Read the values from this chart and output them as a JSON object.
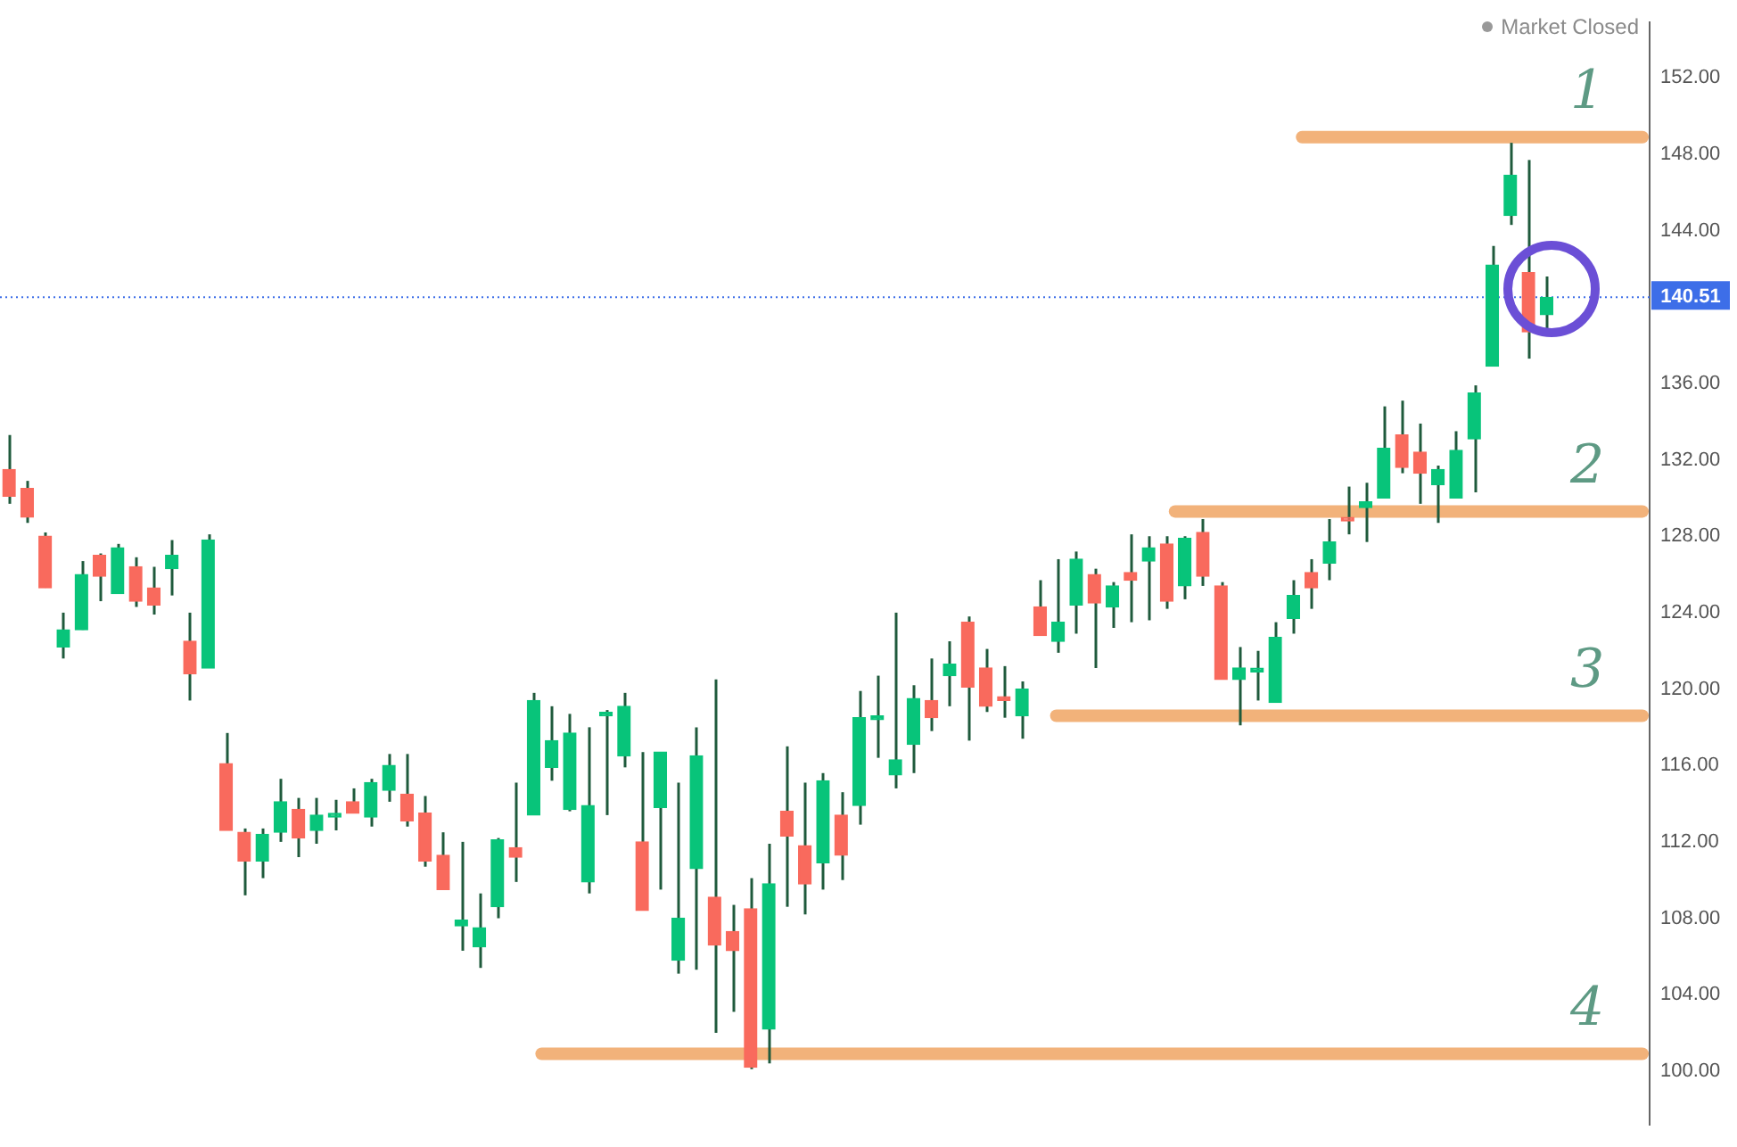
{
  "chart_data": {
    "type": "candlestick",
    "tick_labels": "y",
    "categories": [
      null,
      null,
      null,
      null,
      null,
      null,
      null,
      null,
      null,
      null,
      null,
      null,
      null,
      null,
      null,
      null,
      null,
      null,
      null,
      null,
      null,
      null,
      null,
      null,
      null,
      null,
      null,
      null,
      null,
      null,
      null,
      null,
      null,
      null,
      null,
      null,
      null,
      null,
      null,
      null,
      null,
      null,
      null,
      null,
      null,
      null,
      null,
      null,
      null,
      null,
      null,
      null,
      null,
      null,
      null,
      null,
      null,
      null,
      null,
      null,
      null,
      null,
      null,
      null,
      null,
      null,
      null,
      null,
      null,
      null,
      null,
      null,
      null,
      null,
      null,
      null,
      null,
      null,
      null,
      null,
      null,
      null,
      null,
      null,
      null,
      null
    ],
    "ohlc": [
      [
        131.5,
        133.3,
        129.7,
        130.1
      ],
      [
        130.5,
        130.9,
        128.7,
        129.0
      ],
      [
        128.0,
        128.2,
        125.3,
        125.3
      ],
      [
        122.2,
        124.0,
        121.6,
        123.1
      ],
      [
        123.1,
        126.7,
        123.1,
        126.0
      ],
      [
        127.0,
        127.1,
        124.6,
        125.9
      ],
      [
        125.0,
        127.6,
        125.0,
        127.4
      ],
      [
        126.4,
        126.9,
        124.3,
        124.6
      ],
      [
        125.3,
        126.4,
        123.9,
        124.4
      ],
      [
        126.3,
        127.8,
        124.9,
        127.0
      ],
      [
        122.5,
        124.0,
        119.4,
        120.8
      ],
      [
        121.1,
        128.1,
        121.1,
        127.8
      ],
      [
        116.1,
        117.7,
        112.6,
        112.6
      ],
      [
        112.5,
        112.7,
        109.2,
        111.0
      ],
      [
        111.0,
        112.7,
        110.1,
        112.4
      ],
      [
        112.5,
        115.3,
        112.0,
        114.1
      ],
      [
        113.7,
        114.3,
        111.2,
        112.2
      ],
      [
        112.6,
        114.3,
        111.9,
        113.4
      ],
      [
        113.3,
        114.2,
        112.6,
        113.4
      ],
      [
        114.1,
        114.8,
        113.5,
        113.5
      ],
      [
        113.3,
        115.3,
        112.8,
        115.1
      ],
      [
        114.7,
        116.6,
        114.1,
        116.0
      ],
      [
        114.5,
        116.6,
        112.8,
        113.1
      ],
      [
        113.5,
        114.4,
        110.7,
        111.0
      ],
      [
        111.3,
        112.5,
        109.5,
        109.5
      ],
      [
        107.6,
        112.0,
        106.3,
        107.9
      ],
      [
        106.5,
        109.3,
        105.4,
        107.5
      ],
      [
        108.6,
        112.2,
        108.0,
        112.1
      ],
      [
        111.7,
        115.1,
        109.9,
        111.2
      ],
      [
        113.4,
        119.8,
        113.4,
        119.4
      ],
      [
        115.9,
        119.1,
        115.2,
        117.3
      ],
      [
        113.7,
        118.7,
        113.6,
        117.7
      ],
      [
        109.9,
        118.0,
        109.3,
        113.9
      ],
      [
        118.6,
        118.9,
        113.4,
        118.7
      ],
      [
        116.5,
        119.8,
        115.9,
        119.1
      ],
      [
        112.0,
        116.7,
        108.4,
        108.4
      ],
      [
        113.8,
        116.7,
        109.5,
        116.7
      ],
      [
        105.8,
        115.1,
        105.1,
        108.0
      ],
      [
        110.6,
        118.0,
        105.3,
        116.5
      ],
      [
        109.1,
        120.5,
        102.0,
        106.6
      ],
      [
        107.3,
        108.7,
        103.1,
        106.3
      ],
      [
        108.5,
        110.1,
        100.1,
        100.2
      ],
      [
        102.2,
        111.9,
        100.4,
        109.8
      ],
      [
        113.6,
        117.0,
        108.6,
        112.3
      ],
      [
        111.8,
        115.1,
        108.2,
        109.8
      ],
      [
        110.9,
        115.6,
        109.5,
        115.2
      ],
      [
        113.4,
        114.6,
        110.0,
        111.3
      ],
      [
        113.9,
        119.9,
        112.9,
        118.5
      ],
      [
        118.4,
        120.7,
        116.4,
        118.6
      ],
      [
        115.5,
        124.0,
        114.8,
        116.3
      ],
      [
        117.1,
        120.2,
        115.6,
        119.5
      ],
      [
        119.4,
        121.6,
        117.8,
        118.5
      ],
      [
        120.7,
        122.5,
        119.1,
        121.3
      ],
      [
        123.5,
        123.8,
        117.3,
        120.1
      ],
      [
        121.1,
        122.1,
        118.8,
        119.1
      ],
      [
        119.6,
        121.2,
        118.5,
        119.4
      ],
      [
        118.6,
        120.4,
        117.4,
        120.0
      ],
      [
        124.3,
        125.7,
        122.8,
        122.8
      ],
      [
        122.5,
        126.8,
        121.9,
        123.5
      ],
      [
        124.4,
        127.2,
        122.9,
        126.8
      ],
      [
        126.0,
        126.3,
        121.1,
        124.5
      ],
      [
        124.3,
        125.6,
        123.2,
        125.4
      ],
      [
        126.1,
        128.1,
        123.5,
        125.7
      ],
      [
        126.7,
        128.0,
        123.6,
        127.4
      ],
      [
        127.6,
        128.0,
        124.2,
        124.6
      ],
      [
        125.4,
        128.0,
        124.7,
        127.9
      ],
      [
        128.2,
        128.9,
        125.4,
        125.9
      ],
      [
        125.4,
        125.6,
        120.5,
        120.5
      ],
      [
        120.5,
        122.2,
        118.1,
        121.1
      ],
      [
        120.9,
        122.0,
        119.4,
        121.0
      ],
      [
        119.3,
        123.5,
        119.3,
        122.7
      ],
      [
        123.7,
        125.7,
        122.9,
        124.9
      ],
      [
        126.1,
        126.8,
        124.2,
        125.3
      ],
      [
        126.6,
        128.9,
        125.7,
        127.7
      ],
      [
        128.9,
        130.6,
        128.1,
        128.8
      ],
      [
        129.5,
        130.8,
        127.7,
        129.8
      ],
      [
        130.0,
        134.8,
        130.0,
        132.6
      ],
      [
        133.3,
        135.1,
        131.3,
        131.6
      ],
      [
        132.4,
        133.9,
        129.7,
        131.3
      ],
      [
        130.7,
        131.7,
        128.7,
        131.5
      ],
      [
        130.0,
        133.5,
        130.0,
        132.5
      ],
      [
        133.1,
        135.9,
        130.3,
        135.5
      ],
      [
        136.9,
        143.2,
        136.9,
        142.2
      ],
      [
        144.8,
        148.6,
        144.3,
        146.9
      ],
      [
        141.8,
        147.7,
        137.3,
        138.7
      ],
      [
        139.6,
        141.6,
        138.7,
        140.51
      ]
    ],
    "colors": [
      "#f96a5d",
      "#f96a5d",
      "#f96a5d",
      "#08c47a",
      "#08c47a",
      "#f96a5d",
      "#08c47a",
      "#f96a5d",
      "#f96a5d",
      "#08c47a",
      "#f96a5d",
      "#08c47a",
      "#f96a5d",
      "#f96a5d",
      "#08c47a",
      "#08c47a",
      "#f96a5d",
      "#08c47a",
      "#08c47a",
      "#f96a5d",
      "#08c47a",
      "#08c47a",
      "#f96a5d",
      "#f96a5d",
      "#f96a5d",
      "#08c47a",
      "#08c47a",
      "#08c47a",
      "#f96a5d",
      "#08c47a",
      "#08c47a",
      "#08c47a",
      "#08c47a",
      "#08c47a",
      "#08c47a",
      "#f96a5d",
      "#08c47a",
      "#08c47a",
      "#08c47a",
      "#f96a5d",
      "#f96a5d",
      "#f96a5d",
      "#08c47a",
      "#f96a5d",
      "#f96a5d",
      "#08c47a",
      "#f96a5d",
      "#08c47a",
      "#08c47a",
      "#08c47a",
      "#08c47a",
      "#f96a5d",
      "#08c47a",
      "#f96a5d",
      "#f96a5d",
      "#f96a5d",
      "#08c47a",
      "#f96a5d",
      "#08c47a",
      "#08c47a",
      "#f96a5d",
      "#08c47a",
      "#f96a5d",
      "#08c47a",
      "#f96a5d",
      "#08c47a",
      "#f96a5d",
      "#f96a5d",
      "#08c47a",
      "#08c47a",
      "#08c47a",
      "#08c47a",
      "#f96a5d",
      "#08c47a",
      "#f96a5d",
      "#08c47a",
      "#08c47a",
      "#f96a5d",
      "#f96a5d",
      "#08c47a",
      "#08c47a",
      "#08c47a",
      "#08c47a",
      "#08c47a",
      "#f96a5d",
      "#08c47a"
    ],
    "ylim": [
      97.2,
      154.9
    ],
    "yticks": [
      {
        "value": 100,
        "label": "100.00"
      },
      {
        "value": 104,
        "label": "104.00"
      },
      {
        "value": 108,
        "label": "108.00"
      },
      {
        "value": 112,
        "label": "112.00"
      },
      {
        "value": 116,
        "label": "116.00"
      },
      {
        "value": 120,
        "label": "120.00"
      },
      {
        "value": 124,
        "label": "124.00"
      },
      {
        "value": 128,
        "label": "128.00"
      },
      {
        "value": 132,
        "label": "132.00"
      },
      {
        "value": 136,
        "label": "136.00"
      },
      {
        "value": 144,
        "label": "144.00"
      },
      {
        "value": 148,
        "label": "148.00"
      },
      {
        "value": 152,
        "label": "152.00"
      }
    ],
    "ref_lines": [
      {
        "axis": "y",
        "value": 148.9,
        "color": "#f2b27a",
        "line_style": "solid"
      },
      {
        "axis": "y",
        "value": 129.3,
        "color": "#f2b27a",
        "line_style": "solid"
      },
      {
        "axis": "y",
        "value": 118.6,
        "color": "#f2b27a",
        "line_style": "solid"
      },
      {
        "axis": "y",
        "value": 100.9,
        "color": "#f2b27a",
        "line_style": "solid"
      },
      {
        "axis": "y",
        "value": 140.51,
        "label": "140.51",
        "color": "#3d6ee8",
        "line_style": "dotted"
      }
    ],
    "annotations": [
      "Market Closed",
      "1",
      "2",
      "3",
      "4"
    ]
  }
}
